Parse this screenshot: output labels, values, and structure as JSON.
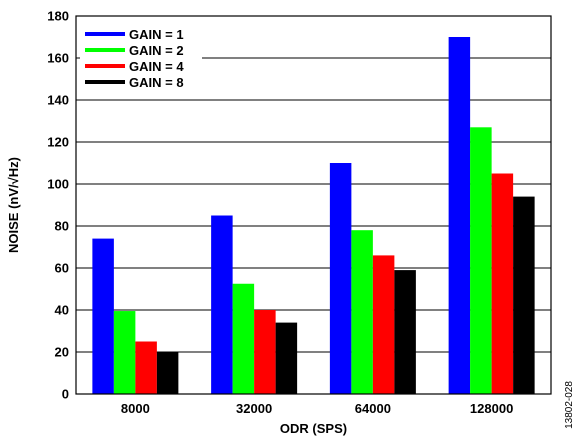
{
  "chart_data": {
    "type": "bar",
    "title": "",
    "xlabel": "ODR (SPS)",
    "ylabel": "NOISE (nV/√Hz)",
    "categories": [
      "8000",
      "32000",
      "64000",
      "128000"
    ],
    "ylim": [
      0,
      180
    ],
    "yticks": [
      0,
      20,
      40,
      60,
      80,
      100,
      120,
      140,
      160,
      180
    ],
    "grid": true,
    "legend_position": "top-left",
    "series": [
      {
        "name": "GAIN = 1",
        "color": "#0000ff",
        "values": [
          74,
          85,
          110,
          170
        ]
      },
      {
        "name": "GAIN = 2",
        "color": "#00ff00",
        "values": [
          39.5,
          52.5,
          78,
          127
        ]
      },
      {
        "name": "GAIN = 4",
        "color": "#ff0000",
        "values": [
          25,
          40,
          66,
          105
        ]
      },
      {
        "name": "GAIN = 8",
        "color": "#000000",
        "values": [
          20,
          34,
          59,
          94
        ]
      }
    ]
  },
  "figure_id": "13802-028"
}
